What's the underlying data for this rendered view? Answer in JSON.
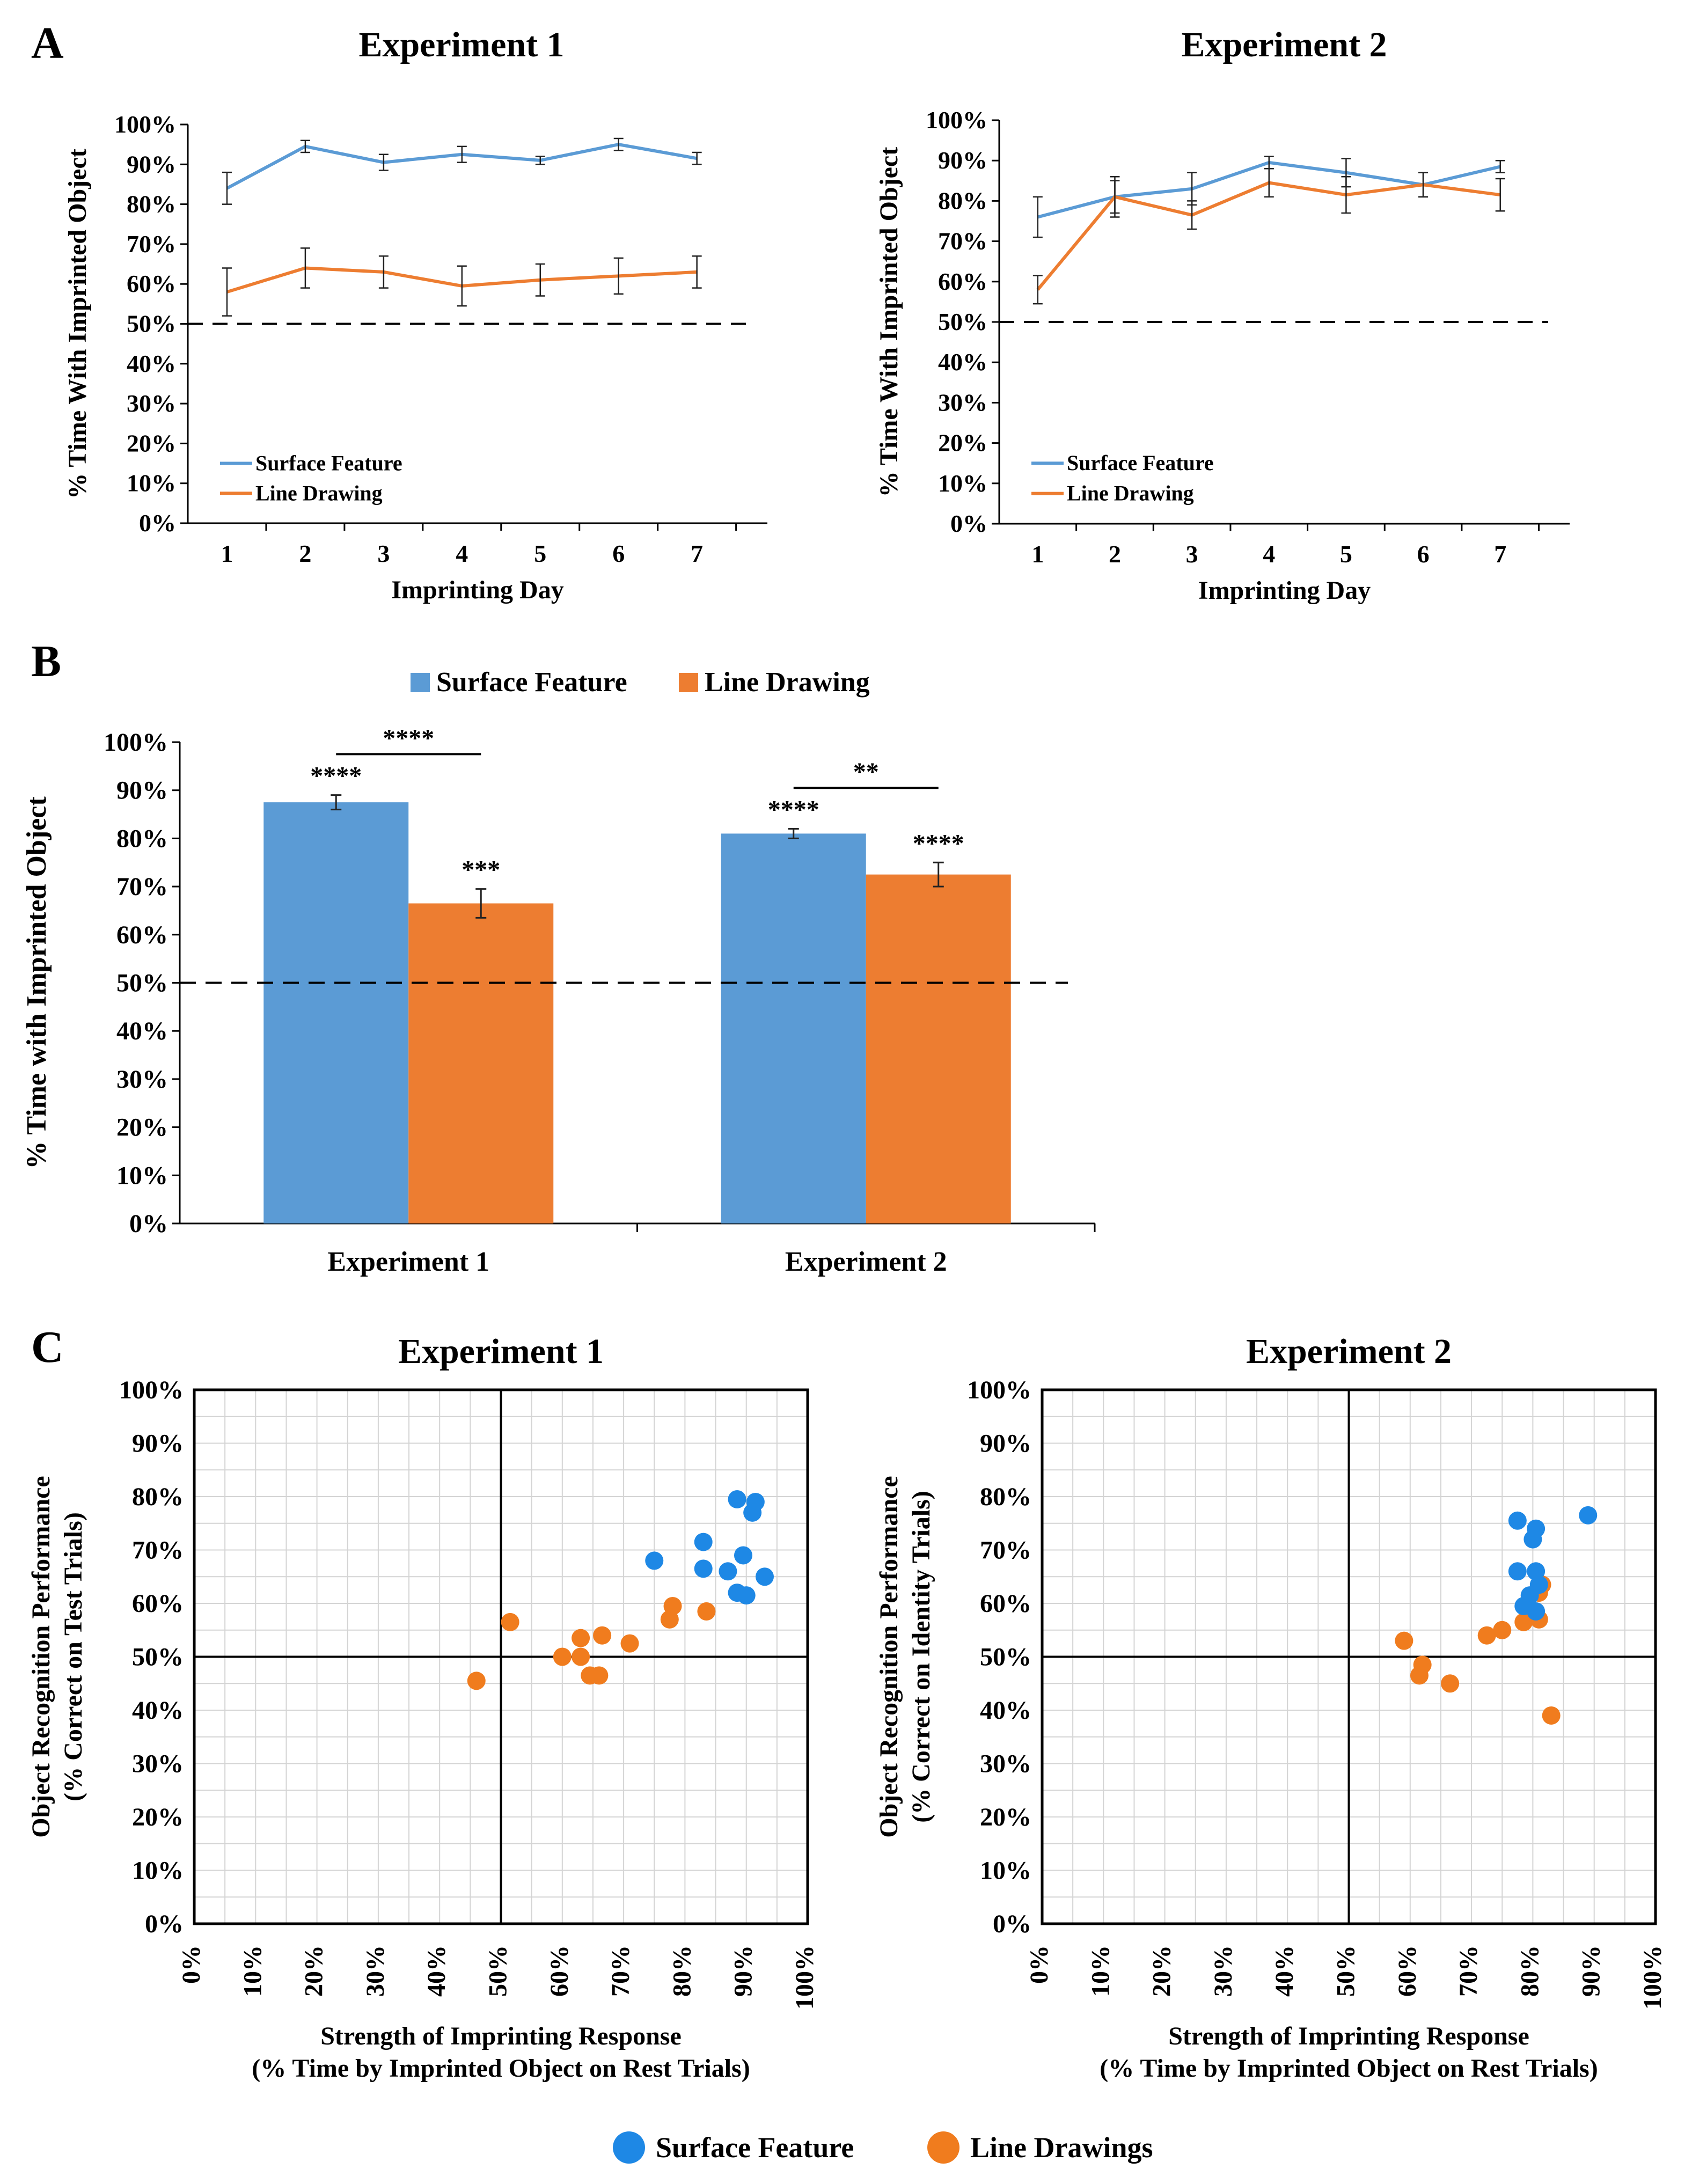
{
  "colors": {
    "surface": "#5b9bd5",
    "line": "#ed7d31",
    "surface_dot": "#1e88e5",
    "line_dot": "#f07c1e"
  },
  "panels": {
    "a": "A",
    "b": "B",
    "c": "C"
  },
  "chart_data": [
    {
      "id": "A1",
      "type": "line",
      "title": "Experiment 1",
      "xlabel": "Imprinting Day",
      "ylabel": "% Time With Imprinted Object",
      "ylim": [
        0,
        100
      ],
      "reference_line": 50,
      "categories": [
        "1",
        "2",
        "3",
        "4",
        "5",
        "6",
        "7"
      ],
      "yticks": [
        "0%",
        "10%",
        "20%",
        "30%",
        "40%",
        "50%",
        "60%",
        "70%",
        "80%",
        "90%",
        "100%"
      ],
      "series": [
        {
          "name": "Surface Feature",
          "values": [
            84,
            94.5,
            90.5,
            92.5,
            91,
            95,
            91.5
          ],
          "errors": [
            4,
            1.5,
            2,
            2,
            1,
            1.5,
            1.5
          ]
        },
        {
          "name": "Line Drawing",
          "values": [
            58,
            64,
            63,
            59.5,
            61,
            62,
            63
          ],
          "errors": [
            6,
            5,
            4,
            5,
            4,
            4.5,
            4
          ]
        }
      ]
    },
    {
      "id": "A2",
      "type": "line",
      "title": "Experiment 2",
      "xlabel": "Imprinting Day",
      "ylabel": "% Time With Imprinted Object",
      "ylim": [
        0,
        100
      ],
      "reference_line": 50,
      "categories": [
        "1",
        "2",
        "3",
        "4",
        "5",
        "6",
        "7"
      ],
      "yticks": [
        "0%",
        "10%",
        "20%",
        "30%",
        "40%",
        "50%",
        "60%",
        "70%",
        "80%",
        "90%",
        "100%"
      ],
      "series": [
        {
          "name": "Surface Feature",
          "values": [
            76,
            81,
            83,
            89.5,
            87,
            84,
            88.5
          ],
          "errors": [
            5,
            5,
            4,
            1.5,
            3.5,
            3,
            1.5
          ]
        },
        {
          "name": "Line Drawing",
          "values": [
            58,
            81,
            76.5,
            84.5,
            81.5,
            84,
            81.5
          ],
          "errors": [
            3.5,
            4,
            3.5,
            3.5,
            4.5,
            3,
            4
          ]
        }
      ]
    },
    {
      "id": "B",
      "type": "bar",
      "xlabel": "",
      "ylabel": "% Time with Imprinted Object",
      "ylim": [
        0,
        100
      ],
      "reference_line": 50,
      "categories": [
        "Experiment 1",
        "Experiment 2"
      ],
      "yticks": [
        "0%",
        "10%",
        "20%",
        "30%",
        "40%",
        "50%",
        "60%",
        "70%",
        "80%",
        "90%",
        "100%"
      ],
      "series": [
        {
          "name": "Surface Feature",
          "values": [
            87.5,
            81
          ],
          "errors": [
            1.5,
            1
          ],
          "labels": [
            "****",
            "****"
          ]
        },
        {
          "name": "Line Drawing",
          "values": [
            66.5,
            72.5
          ],
          "errors": [
            3,
            2.5
          ],
          "labels": [
            "***",
            "****"
          ]
        }
      ],
      "comparisons": [
        "****",
        "**"
      ]
    },
    {
      "id": "C1",
      "type": "scatter",
      "title": "Experiment 1",
      "xlabel": "Strength of Imprinting Response",
      "xlabel2": "(% Time by Imprinted Object on Rest Trials)",
      "ylabel": "Object Recognition Performance",
      "ylabel2": "(% Correct on Test Trials)",
      "xlim": [
        0,
        100
      ],
      "ylim": [
        0,
        100
      ],
      "yticks": [
        "0%",
        "10%",
        "20%",
        "30%",
        "40%",
        "50%",
        "60%",
        "70%",
        "80%",
        "90%",
        "100%"
      ],
      "xticks": [
        "0%",
        "10%",
        "20%",
        "30%",
        "40%",
        "50%",
        "60%",
        "70%",
        "80%",
        "90%",
        "100%"
      ],
      "series": [
        {
          "name": "Surface Feature",
          "points": [
            [
              75,
              68
            ],
            [
              83,
              71.5
            ],
            [
              83,
              66.5
            ],
            [
              87,
              66
            ],
            [
              88.5,
              79.5
            ],
            [
              91.5,
              79
            ],
            [
              91,
              77
            ],
            [
              89.5,
              69
            ],
            [
              88.5,
              62
            ],
            [
              90,
              61.5
            ],
            [
              93,
              65
            ]
          ]
        },
        {
          "name": "Line Drawings",
          "points": [
            [
              46,
              45.5
            ],
            [
              51.5,
              56.5
            ],
            [
              60,
              50
            ],
            [
              63,
              50
            ],
            [
              63,
              53.5
            ],
            [
              66.5,
              54
            ],
            [
              64.5,
              46.5
            ],
            [
              66,
              46.5
            ],
            [
              71,
              52.5
            ],
            [
              78,
              59.5
            ],
            [
              77.5,
              57
            ],
            [
              83.5,
              58.5
            ]
          ]
        }
      ]
    },
    {
      "id": "C2",
      "type": "scatter",
      "title": "Experiment 2",
      "xlabel": "Strength of Imprinting Response",
      "xlabel2": "(% Time by Imprinted Object on Rest Trials)",
      "ylabel": "Object Recognition Performance",
      "ylabel2": "(% Correct on Identity Trials)",
      "xlim": [
        0,
        100
      ],
      "ylim": [
        0,
        100
      ],
      "yticks": [
        "0%",
        "10%",
        "20%",
        "30%",
        "40%",
        "50%",
        "60%",
        "70%",
        "80%",
        "90%",
        "100%"
      ],
      "xticks": [
        "0%",
        "10%",
        "20%",
        "30%",
        "40%",
        "50%",
        "60%",
        "70%",
        "80%",
        "90%",
        "100%"
      ],
      "series": [
        {
          "name": "Surface Feature",
          "points": [
            [
              77.5,
              75.5
            ],
            [
              80.5,
              74
            ],
            [
              80,
              72
            ],
            [
              77.5,
              66
            ],
            [
              80.5,
              66
            ],
            [
              79.5,
              61.5
            ],
            [
              81,
              63.5
            ],
            [
              78.5,
              59.5
            ],
            [
              80.5,
              58.5
            ],
            [
              89,
              76.5
            ]
          ]
        },
        {
          "name": "Line Drawings",
          "points": [
            [
              59,
              53
            ],
            [
              62,
              48.5
            ],
            [
              61.5,
              46.5
            ],
            [
              66.5,
              45
            ],
            [
              72.5,
              54
            ],
            [
              75,
              55
            ],
            [
              78.5,
              56.5
            ],
            [
              81,
              57
            ],
            [
              81,
              62
            ],
            [
              81.5,
              63.5
            ],
            [
              83,
              39
            ]
          ]
        }
      ]
    }
  ],
  "legend_bottom": [
    "Surface Feature",
    "Line Drawings"
  ]
}
